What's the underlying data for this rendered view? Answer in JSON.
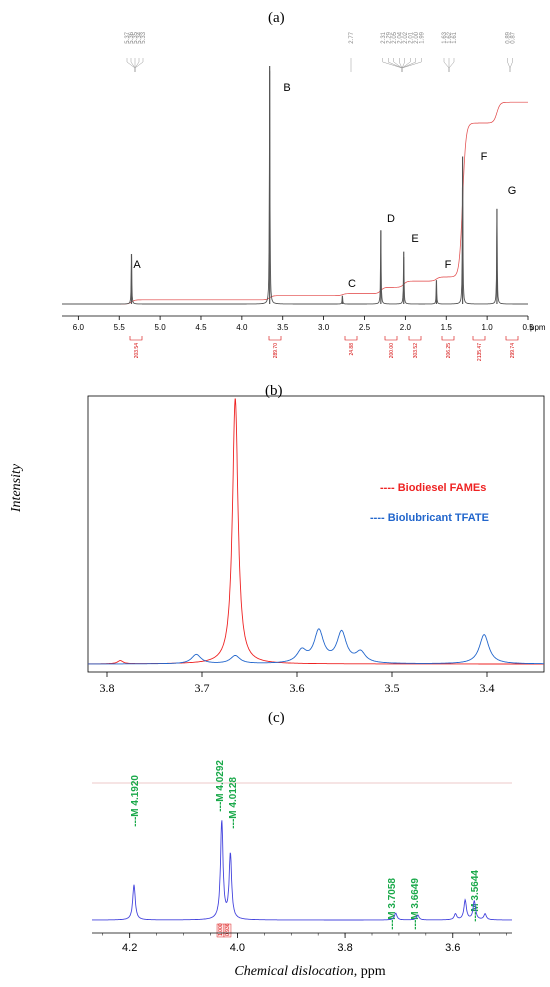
{
  "chart_data": [
    {
      "type": "line",
      "panel_label": "(a)",
      "xlabel": "ppm",
      "xlim": [
        6.2,
        0.5
      ],
      "x_ticks": [
        "6.0",
        "5.5",
        "5.0",
        "4.5",
        "4.0",
        "3.5",
        "3.0",
        "2.5",
        "2.0",
        "1.5",
        "1.0",
        "0.5"
      ],
      "chemical_shift_labels": [
        "5.37",
        "5.36",
        "5.35",
        "5.34",
        "5.33",
        "2.77",
        "2.31",
        "2.29",
        "2.05",
        "2.04",
        "2.02",
        "2.01",
        "2.00",
        "1.99",
        "1.63",
        "1.62",
        "1.61",
        "0.89",
        "0.87"
      ],
      "peaks": [
        {
          "label": "A",
          "shift": 5.35,
          "height": 0.21
        },
        {
          "label": "B",
          "shift": 3.66,
          "height": 1.0
        },
        {
          "label": "C",
          "shift": 2.77,
          "height": 0.035
        },
        {
          "label": "D",
          "shift": 2.3,
          "height": 0.31
        },
        {
          "label": "E",
          "shift": 2.02,
          "height": 0.22
        },
        {
          "label": "F",
          "shift": 1.62,
          "height": 0.1
        },
        {
          "label": "F",
          "shift": 1.3,
          "height": 0.62
        },
        {
          "label": "G",
          "shift": 0.88,
          "height": 0.4
        }
      ],
      "integrals": [
        "203.54",
        "289.70",
        "24.88",
        "200.00",
        "303.52",
        "206.25",
        "2135.47",
        "299.74"
      ],
      "colors": {
        "spectrum": "#555555",
        "integral": "#e04040"
      }
    },
    {
      "type": "line",
      "panel_label": "(b)",
      "ylabel": "Intensity",
      "xlim": [
        3.82,
        3.34
      ],
      "x_ticks": [
        "3.8",
        "3.7",
        "3.6",
        "3.5",
        "3.4"
      ],
      "series": [
        {
          "name": "Biodiesel FAMEs",
          "color": "#ee2222",
          "peaks": [
            {
              "shift": 3.665,
              "height": 1.0
            },
            {
              "shift": 3.786,
              "height": 0.012
            }
          ]
        },
        {
          "name": "Biolubricant TFATE",
          "color": "#2266cc",
          "peaks": [
            {
              "shift": 3.706,
              "height": 0.035
            },
            {
              "shift": 3.665,
              "height": 0.03
            },
            {
              "shift": 3.595,
              "height": 0.045
            },
            {
              "shift": 3.577,
              "height": 0.12
            },
            {
              "shift": 3.553,
              "height": 0.115
            },
            {
              "shift": 3.533,
              "height": 0.04
            },
            {
              "shift": 3.403,
              "height": 0.11
            }
          ]
        }
      ],
      "legend_items": [
        "---- Biodiesel FAMEs",
        "---- Biolubricant TFATE"
      ],
      "legend_position": "right"
    },
    {
      "type": "line",
      "panel_label": "(c)",
      "xlabel": "Chemical dislocation, ppm",
      "xlim": [
        4.27,
        3.49
      ],
      "x_ticks": [
        "4.2",
        "4.0",
        "3.8",
        "3.6"
      ],
      "color": "#4444dd",
      "annotations": [
        "---M 4.1920",
        "---M 4.0292",
        "---M 4.0128",
        "---M 3.7058",
        "---M 3.6649",
        "---M 3.5644"
      ],
      "integrals": [
        "1.000",
        "0.936"
      ],
      "peaks": [
        {
          "shift": 4.192,
          "height": 0.36
        },
        {
          "shift": 4.029,
          "height": 1.0
        },
        {
          "shift": 4.013,
          "height": 0.66
        },
        {
          "shift": 3.706,
          "height": 0.07
        },
        {
          "shift": 3.665,
          "height": 0.05
        },
        {
          "shift": 3.595,
          "height": 0.06
        },
        {
          "shift": 3.577,
          "height": 0.2
        },
        {
          "shift": 3.56,
          "height": 0.19
        },
        {
          "shift": 3.54,
          "height": 0.06
        }
      ]
    }
  ]
}
